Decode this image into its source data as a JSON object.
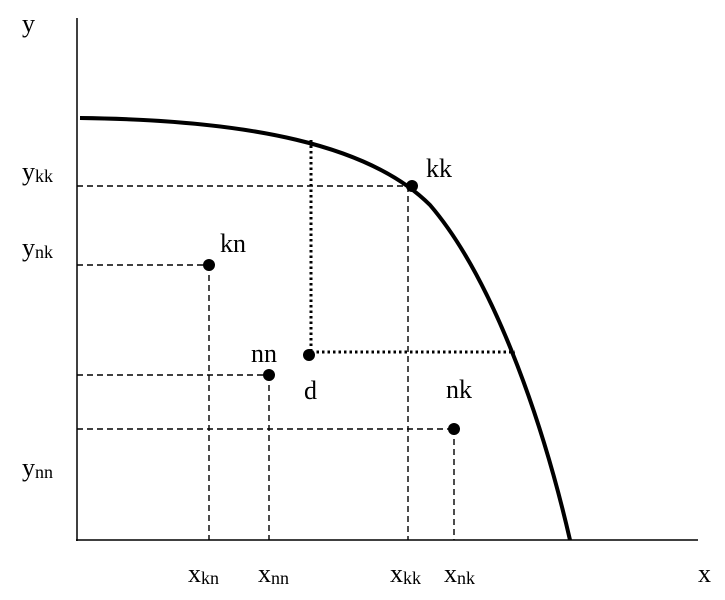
{
  "axes": {
    "x": "x",
    "y": "y"
  },
  "x_ticks": [
    {
      "symbol": "x",
      "subscript": "kn"
    },
    {
      "symbol": "x",
      "subscript": "nn"
    },
    {
      "symbol": "x",
      "subscript": "kk"
    },
    {
      "symbol": "x",
      "subscript": "nk"
    }
  ],
  "y_ticks": [
    {
      "symbol": "y",
      "subscript": "kk"
    },
    {
      "symbol": "y",
      "subscript": "nk"
    },
    {
      "symbol": "y",
      "subscript": "nn"
    }
  ],
  "points": [
    "kk",
    "kn",
    "nn",
    "d",
    "nk"
  ]
}
